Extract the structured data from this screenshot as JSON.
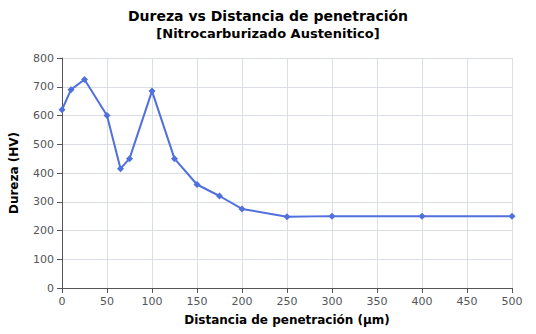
{
  "chart_data": {
    "type": "line",
    "title": "Dureza vs Distancia de penetración",
    "subtitle": "[Nitrocarburizado Austenitico]",
    "x_label": "Distancia de penetración (μm)",
    "y_label": "Dureza (HV)",
    "x": [
      0,
      10,
      25,
      50,
      65,
      75,
      100,
      125,
      150,
      175,
      200,
      250,
      300,
      400,
      500
    ],
    "values": [
      620,
      690,
      725,
      600,
      415,
      450,
      685,
      450,
      360,
      320,
      275,
      248,
      250,
      250,
      250
    ],
    "xlim": [
      0,
      500
    ],
    "ylim": [
      0,
      800
    ],
    "xticks": [
      0,
      50,
      100,
      150,
      200,
      250,
      300,
      350,
      400,
      450,
      500
    ],
    "yticks": [
      0,
      100,
      200,
      300,
      400,
      500,
      600,
      700,
      800
    ],
    "marker": "diamond",
    "grid": true
  }
}
